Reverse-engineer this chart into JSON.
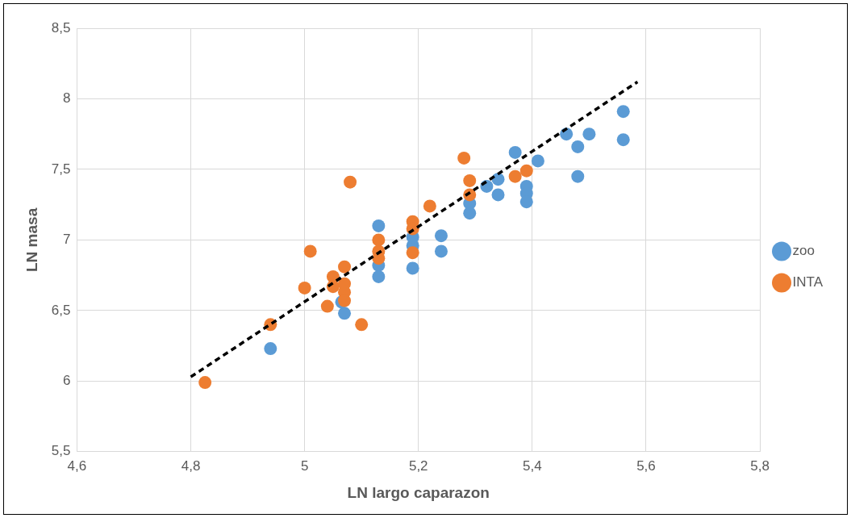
{
  "chart_data": {
    "type": "scatter",
    "xlabel": "LN largo caparazon",
    "ylabel": "LN masa",
    "xlim": [
      4.6,
      5.8
    ],
    "xticks": [
      {
        "value": 4.6,
        "label": "4,6"
      },
      {
        "value": 4.8,
        "label": "4,8"
      },
      {
        "value": 5,
        "label": "5"
      },
      {
        "value": 5.2,
        "label": "5,2"
      },
      {
        "value": 5.4,
        "label": "5,4"
      },
      {
        "value": 5.6,
        "label": "5,6"
      },
      {
        "value": 5.8,
        "label": "5,8"
      }
    ],
    "ylim": [
      5.5,
      8.5
    ],
    "yticks": [
      {
        "value": 5.5,
        "label": "5,5"
      },
      {
        "value": 6,
        "label": "6"
      },
      {
        "value": 6.5,
        "label": "6,5"
      },
      {
        "value": 7,
        "label": "7"
      },
      {
        "value": 7.5,
        "label": "7,5"
      },
      {
        "value": 8,
        "label": "8"
      },
      {
        "value": 8.5,
        "label": "8,5"
      }
    ],
    "grid": true,
    "legend": "right",
    "marker": "circle",
    "series": [
      {
        "name": "zoo",
        "color": "#5b9bd5",
        "x": [
          4.94,
          5.07,
          5.065,
          5.13,
          5.13,
          5.13,
          5.19,
          5.19,
          5.19,
          5.24,
          5.24,
          5.29,
          5.29,
          5.32,
          5.34,
          5.34,
          5.37,
          5.39,
          5.39,
          5.39,
          5.41,
          5.46,
          5.48,
          5.5,
          5.48,
          5.56,
          5.56
        ],
        "values": [
          6.23,
          6.48,
          6.56,
          7.1,
          6.82,
          6.74,
          6.8,
          6.96,
          7.02,
          7.03,
          6.92,
          7.19,
          7.26,
          7.38,
          7.43,
          7.32,
          7.62,
          7.38,
          7.33,
          7.27,
          7.56,
          7.75,
          7.66,
          7.75,
          7.45,
          7.91,
          7.71
        ]
      },
      {
        "name": "INTA",
        "color": "#ed7d31",
        "x": [
          4.825,
          4.94,
          5.0,
          5.01,
          5.04,
          5.05,
          5.05,
          5.07,
          5.07,
          5.07,
          5.07,
          5.08,
          5.1,
          5.13,
          5.13,
          5.13,
          5.19,
          5.19,
          5.19,
          5.22,
          5.28,
          5.29,
          5.29,
          5.37,
          5.39
        ],
        "values": [
          5.99,
          6.4,
          6.66,
          6.92,
          6.53,
          6.74,
          6.67,
          6.81,
          6.69,
          6.63,
          6.57,
          7.41,
          6.4,
          7.0,
          6.92,
          6.87,
          7.13,
          7.08,
          6.91,
          7.24,
          7.58,
          7.42,
          7.32,
          7.45,
          7.49
        ]
      },
      {
        "type": "line",
        "color": "#000000",
        "line_style": "dashed",
        "marker": "none",
        "x": [
          4.8,
          5.585
        ],
        "values": [
          6.03,
          8.12
        ]
      }
    ]
  }
}
